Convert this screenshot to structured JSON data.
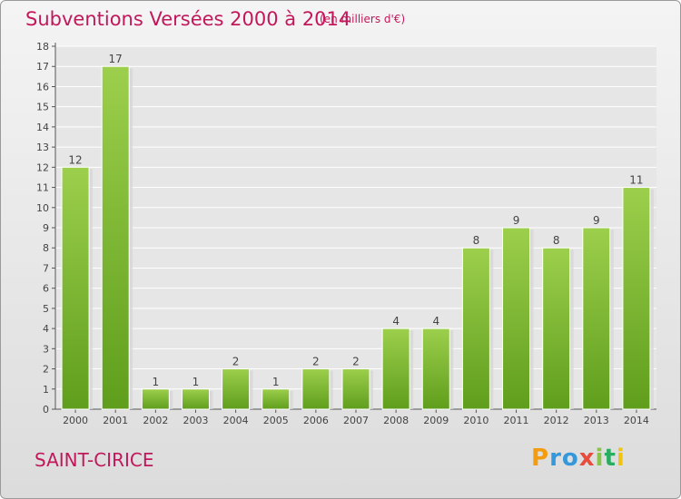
{
  "header": {
    "title": "Subventions Versées 2000 à 2014",
    "subtitle": "(en milliers d'€)"
  },
  "footer": {
    "commune": "SAINT-CIRICE",
    "logo": "Proxiti"
  },
  "colors": {
    "bar_top": "#9ccf4c",
    "bar_bottom": "#5f9e1c",
    "title": "#c2185b"
  },
  "chart_data": {
    "type": "bar",
    "title": "Subventions Versées 2000 à 2014",
    "subtitle": "(en milliers d'€)",
    "categories": [
      "2000",
      "2001",
      "2002",
      "2003",
      "2004",
      "2005",
      "2006",
      "2007",
      "2008",
      "2009",
      "2010",
      "2011",
      "2012",
      "2013",
      "2014"
    ],
    "values": [
      12,
      17,
      1,
      1,
      2,
      1,
      2,
      2,
      4,
      4,
      8,
      9,
      8,
      9,
      11
    ],
    "ylim": [
      0,
      18
    ],
    "yticks": [
      0,
      1,
      2,
      3,
      4,
      5,
      6,
      7,
      8,
      9,
      10,
      11,
      12,
      13,
      14,
      15,
      16,
      17,
      18
    ],
    "grid": true,
    "data_labels": true
  }
}
